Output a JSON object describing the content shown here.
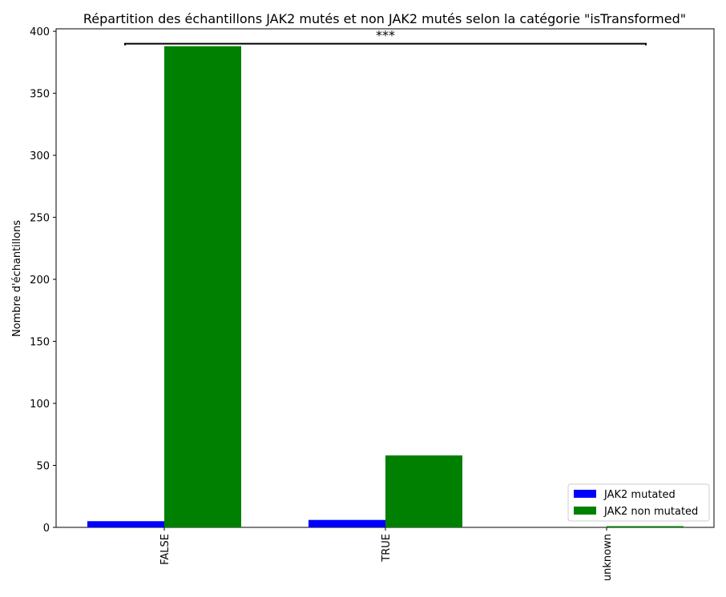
{
  "chart_data": {
    "type": "bar",
    "title": "Répartition des échantillons JAK2 mutés et non JAK2 mutés selon la catégorie \"isTransformed\"",
    "xlabel": "",
    "ylabel": "Nombre d'échantillons",
    "categories": [
      "FALSE",
      "TRUE",
      "unknown"
    ],
    "ylim": [
      0,
      400
    ],
    "yticks": [
      0,
      50,
      100,
      150,
      200,
      250,
      300,
      350,
      400
    ],
    "series": [
      {
        "name": "JAK2 mutated",
        "color": "#0000ff",
        "values": [
          5,
          6,
          0
        ]
      },
      {
        "name": "JAK2 non mutated",
        "color": "#008000",
        "values": [
          388,
          58,
          1
        ]
      }
    ],
    "legend": "lower-right",
    "grid": false,
    "annotation": {
      "text": "***",
      "from_category": "FALSE",
      "to_category": "unknown",
      "y": 390
    }
  }
}
